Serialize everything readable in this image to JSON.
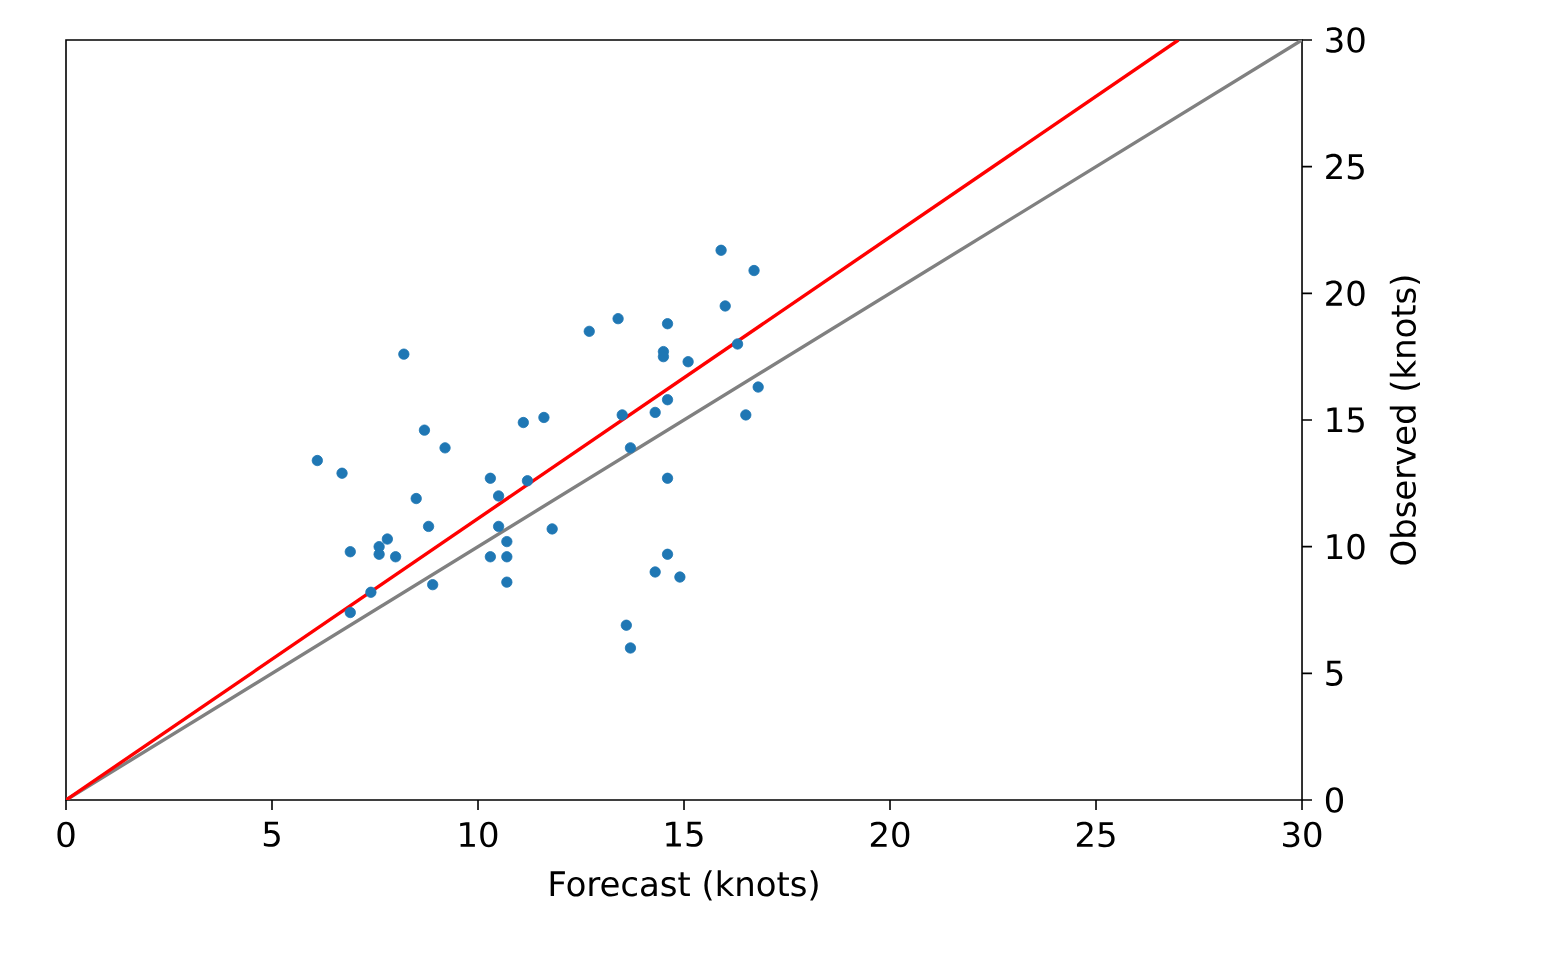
{
  "chart_data": {
    "type": "scatter",
    "xlabel": "Forecast (knots)",
    "ylabel": "Observed (knots)",
    "xlim": [
      0,
      30
    ],
    "ylim": [
      0,
      30
    ],
    "xticks": [
      0,
      5,
      10,
      15,
      20,
      25,
      30
    ],
    "yticks": [
      0,
      5,
      10,
      15,
      20,
      25,
      30
    ],
    "grid": false,
    "series": [
      {
        "color": "#1f77b4",
        "marker": "circle",
        "x": [
          6.1,
          6.7,
          6.9,
          6.9,
          7.4,
          7.6,
          7.8,
          7.6,
          8.0,
          8.2,
          8.5,
          8.7,
          8.8,
          8.9,
          9.2,
          10.3,
          10.5,
          10.3,
          10.5,
          10.7,
          10.7,
          10.7,
          11.1,
          11.2,
          11.6,
          11.8,
          12.7,
          13.4,
          13.5,
          13.7,
          13.6,
          13.7,
          14.3,
          14.3,
          14.5,
          14.5,
          14.6,
          14.6,
          14.6,
          14.6,
          14.9,
          15.1,
          15.9,
          16.0,
          16.3,
          16.7,
          16.5,
          16.8
        ],
        "values": [
          13.4,
          12.9,
          9.8,
          7.4,
          8.2,
          10.0,
          10.3,
          9.7,
          9.6,
          17.6,
          11.9,
          14.6,
          10.8,
          8.5,
          13.9,
          12.7,
          12.0,
          9.6,
          10.8,
          10.2,
          9.6,
          8.6,
          14.9,
          12.6,
          15.1,
          10.7,
          18.5,
          19.0,
          15.2,
          13.9,
          6.9,
          6.0,
          9.0,
          15.3,
          17.7,
          17.5,
          18.8,
          15.8,
          12.7,
          9.7,
          8.8,
          17.3,
          21.7,
          19.5,
          18.0,
          20.9,
          15.2,
          16.3
        ]
      },
      {
        "type": "line",
        "marker": "none",
        "color": "#808080",
        "x": [
          0,
          30
        ],
        "values": [
          0,
          30
        ]
      },
      {
        "type": "line",
        "marker": "none",
        "color": "#ff0000",
        "x": [
          0,
          27
        ],
        "values": [
          0,
          30
        ]
      }
    ]
  }
}
